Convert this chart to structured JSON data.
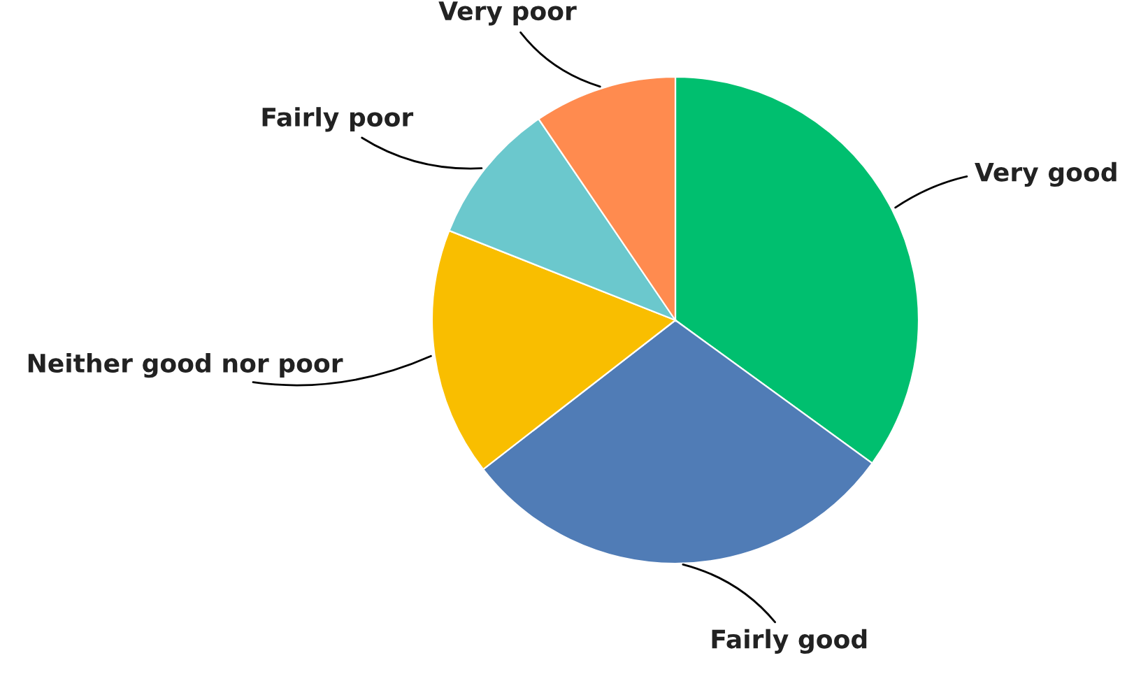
{
  "chart_data": {
    "type": "pie",
    "categories": [
      "Very good",
      "Fairly good",
      "Neither good nor poor",
      "Fairly poor",
      "Very poor"
    ],
    "values": [
      35,
      29.5,
      16.5,
      9.5,
      9.5
    ],
    "colors": [
      "#00bf6f",
      "#507cb6",
      "#f9be00",
      "#6bc8cd",
      "#ff8b4f"
    ]
  }
}
